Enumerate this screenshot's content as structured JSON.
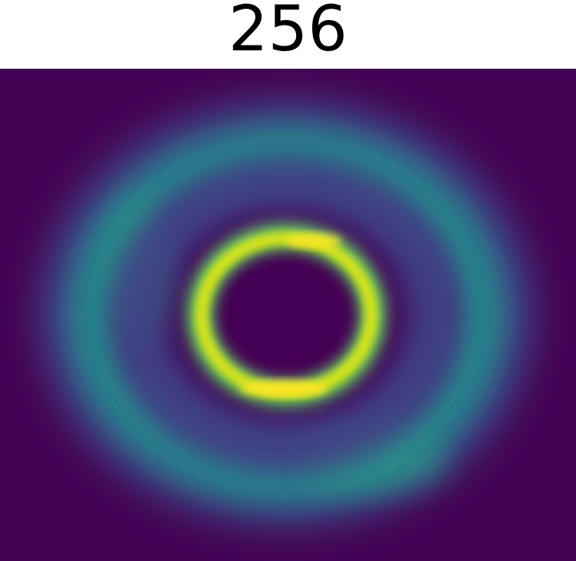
{
  "chart_data": {
    "type": "heatmap",
    "title": "256",
    "colormap": "viridis",
    "xlabel": "",
    "ylabel": "",
    "grid": false,
    "axes_visible": false,
    "description_data": {
      "outer_ring": {
        "relative_intensity": 0.45
      },
      "inner_ring": {
        "relative_intensity": 1.0
      },
      "center": {
        "relative_intensity": 0.0
      }
    }
  },
  "colors": {
    "background": "#440154",
    "low": "#440154",
    "mid_low": "#3b528b",
    "mid": "#21918c",
    "mid_high": "#5ec962",
    "high": "#fde725"
  }
}
